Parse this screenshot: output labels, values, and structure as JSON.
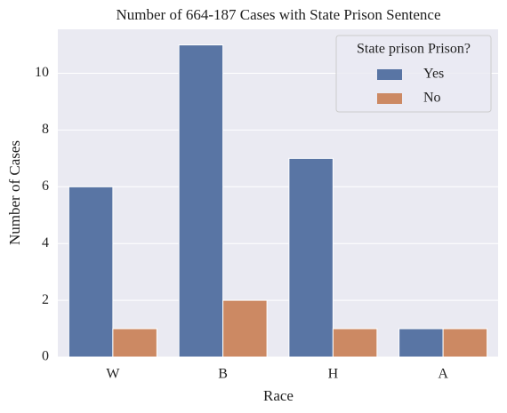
{
  "chart_data": {
    "type": "bar",
    "title": "Number of 664-187 Cases with State Prison Sentence",
    "x_label": "Race",
    "y_label": "Number of Cases",
    "categories": [
      "W",
      "B",
      "H",
      "A"
    ],
    "series": [
      {
        "name": "Yes",
        "color": "#5975a4",
        "values": [
          6,
          11,
          7,
          1
        ]
      },
      {
        "name": "No",
        "color": "#cc8963",
        "values": [
          1,
          2,
          1,
          1
        ]
      }
    ],
    "ylim": [
      0,
      11.55
    ],
    "yticks": [
      0,
      2,
      4,
      6,
      8,
      10
    ],
    "grid": true,
    "legend_title": "State prison Prison?",
    "legend_position": "upper right"
  }
}
